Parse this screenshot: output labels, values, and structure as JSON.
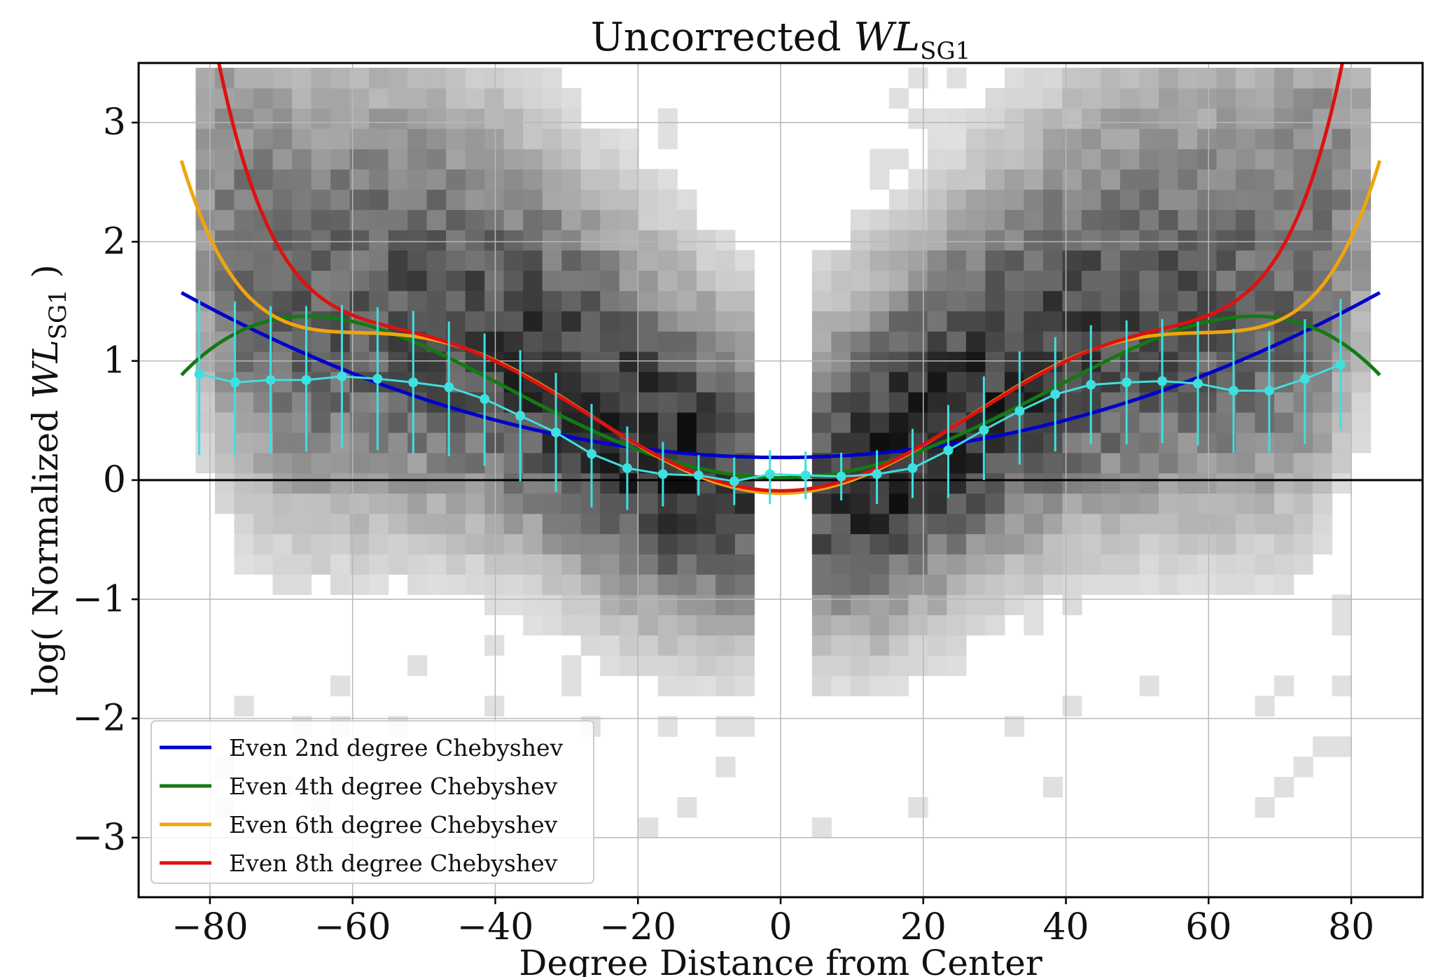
{
  "chart_data": {
    "type": "scatter",
    "title": {
      "main": "Uncorrected ",
      "italic": "WL",
      "sub": "SG1"
    },
    "xlabel": "Degree Distance from Center",
    "ylabel": {
      "prefix": "log( Normalized ",
      "italic": "WL",
      "sub": "SG1",
      "suffix": " )"
    },
    "xlim": [
      -90,
      90
    ],
    "ylim": [
      -3.5,
      3.5
    ],
    "xticks": [
      -80,
      -60,
      -40,
      -20,
      0,
      20,
      40,
      60,
      80
    ],
    "yticks": [
      -3,
      -2,
      -1,
      0,
      1,
      2,
      3
    ],
    "xtick_labels": [
      "−80",
      "−60",
      "−40",
      "−20",
      "0",
      "20",
      "40",
      "60",
      "80"
    ],
    "ytick_labels": [
      "−3",
      "−2",
      "−1",
      "0",
      "1",
      "2",
      "3"
    ],
    "grid": true,
    "reference_line_y": 0,
    "legend_position": "lower-left",
    "background_histogram": {
      "colormap": "greys",
      "description_from_plot": "2D density of measurements; empty for |x| < 4 approximately",
      "x_bin_width": 2.7,
      "y_bin_width": 0.17
    },
    "series": [
      {
        "name": "Even 2nd degree Chebyshev",
        "color": "#0000cc",
        "coeffs": [
          0.19,
          0.000196
        ],
        "xmax": 84
      },
      {
        "name": "Even 4th degree Chebyshev",
        "color": "#137a13",
        "coeffs": [
          0.02,
          0.000616,
          -7e-08
        ],
        "xmax": 84
      },
      {
        "name": "Even 6th degree Chebyshev",
        "color": "#f0a40e",
        "coeffs": [
          -0.11,
          0.00113,
          -3.2e-07,
          3.06e-11
        ],
        "xmax": 84
      },
      {
        "name": "Even 8th degree Chebyshev",
        "color": "#dd1111",
        "coeffs": [
          -0.09,
          0.00108,
          -2.9e-07,
          2.2e-11,
          1.89e-15
        ],
        "xmax": 84
      }
    ],
    "binned_points": {
      "color": "#3ee0e0",
      "x": [
        -81.5,
        -76.5,
        -71.5,
        -66.5,
        -61.5,
        -56.5,
        -51.5,
        -46.5,
        -41.5,
        -36.5,
        -31.5,
        -26.5,
        -21.5,
        -16.5,
        -11.5,
        -6.5,
        -1.5,
        3.5,
        8.5,
        13.5,
        18.5,
        23.5,
        28.5,
        33.5,
        38.5,
        43.5,
        48.5,
        53.5,
        58.5,
        63.5,
        68.5,
        73.5,
        78.5
      ],
      "y": [
        0.89,
        0.82,
        0.84,
        0.84,
        0.87,
        0.85,
        0.82,
        0.78,
        0.68,
        0.54,
        0.4,
        0.22,
        0.1,
        0.05,
        0.04,
        -0.01,
        0.05,
        0.04,
        0.03,
        0.05,
        0.1,
        0.25,
        0.42,
        0.58,
        0.72,
        0.8,
        0.82,
        0.83,
        0.81,
        0.75,
        0.75,
        0.85,
        0.97
      ],
      "err_low": [
        0.68,
        0.62,
        0.62,
        0.6,
        0.6,
        0.6,
        0.6,
        0.58,
        0.56,
        0.55,
        0.5,
        0.45,
        0.35,
        0.27,
        0.17,
        0.2,
        0.25,
        0.2,
        0.2,
        0.25,
        0.25,
        0.4,
        0.42,
        0.45,
        0.48,
        0.5,
        0.52,
        0.52,
        0.52,
        0.52,
        0.52,
        0.55,
        0.55
      ],
      "err_high": [
        0.62,
        0.68,
        0.62,
        0.62,
        0.6,
        0.6,
        0.6,
        0.55,
        0.55,
        0.55,
        0.5,
        0.42,
        0.35,
        0.27,
        0.17,
        0.2,
        0.2,
        0.2,
        0.2,
        0.2,
        0.33,
        0.38,
        0.45,
        0.5,
        0.48,
        0.5,
        0.52,
        0.52,
        0.52,
        0.52,
        0.5,
        0.5,
        0.55
      ]
    }
  }
}
